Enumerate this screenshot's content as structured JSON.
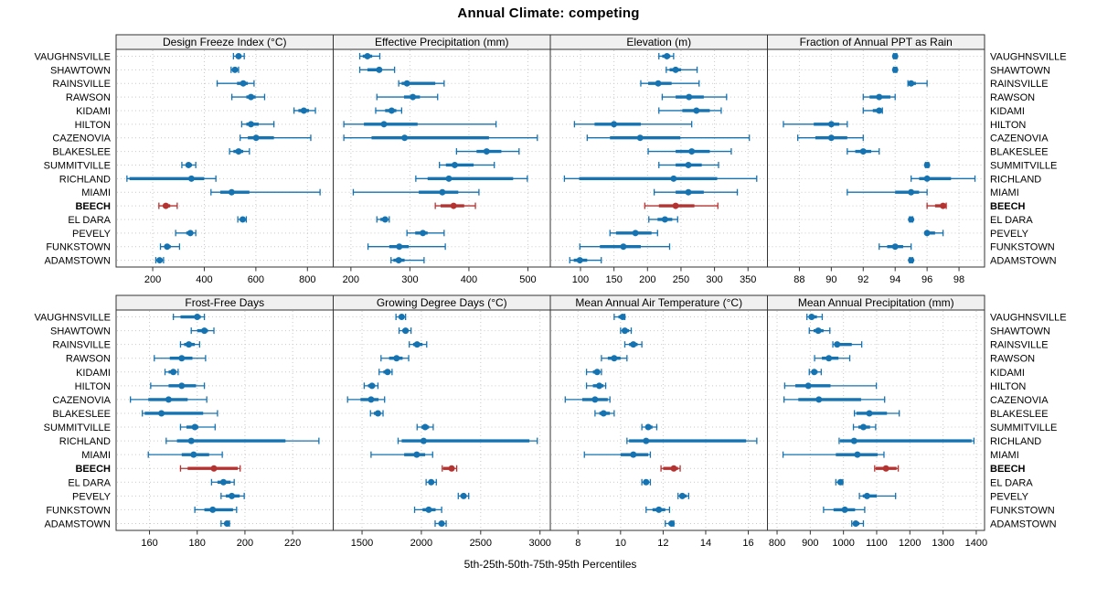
{
  "title": "Annual Climate: competing",
  "caption": "5th-25th-50th-75th-95th Percentiles",
  "stations": [
    "VAUGHNSVILLE",
    "SHAWTOWN",
    "RAINSVILLE",
    "RAWSON",
    "KIDAMI",
    "HILTON",
    "CAZENOVIA",
    "BLAKESLEE",
    "SUMMITVILLE",
    "RICHLAND",
    "MIAMI",
    "BEECH",
    "EL DARA",
    "PEVELY",
    "FUNKSTOWN",
    "ADAMSTOWN"
  ],
  "highlight_station": "BEECH",
  "percentiles": [
    5,
    25,
    50,
    75,
    95
  ],
  "colors": {
    "series": "#1673b1",
    "highlight": "#b43331",
    "grid": "#c9c9c9",
    "strip_bg": "#f0f0f0",
    "border": "#333333",
    "background": "#ffffff"
  },
  "chart_data": [
    {
      "type": "dot-interval",
      "id": "design-freeze-index",
      "title": "Design Freeze Index (°C)",
      "xlim": [
        58,
        900
      ],
      "ticks": [
        200,
        400,
        600,
        800
      ],
      "values": [
        [
          513,
          525,
          533,
          543,
          555
        ],
        [
          504,
          512,
          519,
          527,
          533
        ],
        [
          450,
          527,
          551,
          569,
          593
        ],
        [
          507,
          563,
          581,
          599,
          634
        ],
        [
          748,
          765,
          786,
          806,
          831
        ],
        [
          545,
          563,
          581,
          611,
          670
        ],
        [
          539,
          569,
          601,
          670,
          813
        ],
        [
          498,
          513,
          533,
          551,
          575
        ],
        [
          313,
          328,
          339,
          352,
          367
        ],
        [
          100,
          110,
          350,
          400,
          445
        ],
        [
          426,
          462,
          506,
          575,
          849
        ],
        [
          224,
          240,
          251,
          268,
          295
        ],
        [
          530,
          543,
          549,
          556,
          563
        ],
        [
          289,
          330,
          346,
          356,
          367
        ],
        [
          230,
          245,
          256,
          270,
          304
        ],
        [
          212,
          220,
          227,
          234,
          242
        ]
      ]
    },
    {
      "type": "dot-interval",
      "id": "effective-precipitation",
      "title": "Effective Precipitation (mm)",
      "xlim": [
        170,
        538
      ],
      "ticks": [
        200,
        300,
        400,
        500
      ],
      "values": [
        [
          215,
          220,
          228,
          236,
          249
        ],
        [
          215,
          228,
          248,
          252,
          274
        ],
        [
          281,
          286,
          295,
          343,
          358
        ],
        [
          244,
          290,
          305,
          317,
          347
        ],
        [
          242,
          258,
          269,
          277,
          286
        ],
        [
          188,
          222,
          256,
          313,
          446
        ],
        [
          188,
          235,
          291,
          434,
          516
        ],
        [
          379,
          413,
          430,
          455,
          485
        ],
        [
          350,
          361,
          376,
          408,
          443
        ],
        [
          310,
          330,
          366,
          475,
          499
        ],
        [
          204,
          315,
          355,
          382,
          417
        ],
        [
          343,
          352,
          374,
          392,
          411
        ],
        [
          244,
          250,
          258,
          262,
          265
        ],
        [
          295,
          309,
          322,
          330,
          358
        ],
        [
          229,
          265,
          282,
          298,
          360
        ],
        [
          268,
          272,
          281,
          291,
          324
        ]
      ]
    },
    {
      "type": "dot-interval",
      "id": "elevation",
      "title": "Elevation (m)",
      "xlim": [
        55,
        379
      ],
      "ticks": [
        100,
        150,
        200,
        250,
        300,
        350
      ],
      "values": [
        [
          217,
          222,
          229,
          234,
          239
        ],
        [
          228,
          233,
          242,
          250,
          274
        ],
        [
          190,
          201,
          216,
          236,
          277
        ],
        [
          222,
          242,
          262,
          284,
          318
        ],
        [
          217,
          252,
          273,
          293,
          310
        ],
        [
          91,
          121,
          150,
          190,
          266
        ],
        [
          110,
          144,
          189,
          249,
          352
        ],
        [
          201,
          242,
          266,
          293,
          325
        ],
        [
          217,
          242,
          261,
          281,
          306
        ],
        [
          76,
          98,
          239,
          304,
          363
        ],
        [
          210,
          242,
          261,
          284,
          334
        ],
        [
          196,
          217,
          242,
          270,
          305
        ],
        [
          202,
          215,
          226,
          237,
          245
        ],
        [
          144,
          153,
          182,
          206,
          215
        ],
        [
          99,
          129,
          164,
          190,
          233
        ],
        [
          84,
          90,
          99,
          110,
          131
        ]
      ]
    },
    {
      "type": "dot-interval",
      "id": "fraction-annual-ppt-as-rain",
      "title": "Fraction of Annual PPT as Rain",
      "xlim": [
        86,
        99.6
      ],
      "ticks": [
        88,
        90,
        92,
        94,
        96,
        98
      ],
      "values": [
        [
          93.9,
          94,
          94,
          94,
          94.1
        ],
        [
          93.9,
          94,
          94,
          94,
          94.1
        ],
        [
          94.8,
          94.9,
          95,
          95.3,
          96
        ],
        [
          92,
          92.4,
          93,
          93.7,
          94
        ],
        [
          92,
          92.6,
          93,
          93.1,
          93.2
        ],
        [
          87,
          88.9,
          90,
          90.5,
          91
        ],
        [
          87.9,
          89,
          90,
          91,
          92
        ],
        [
          91,
          91.5,
          92,
          92.5,
          93
        ],
        [
          95.9,
          96,
          96,
          96,
          96.1
        ],
        [
          95,
          95.5,
          96,
          97.5,
          99
        ],
        [
          91,
          94,
          95,
          95.5,
          96
        ],
        [
          96,
          96.5,
          97,
          97.1,
          97.2
        ],
        [
          94.9,
          95,
          95,
          95,
          95.1
        ],
        [
          96,
          96,
          96,
          96.5,
          97
        ],
        [
          93,
          93.5,
          94,
          94.5,
          95
        ],
        [
          94.9,
          95,
          95,
          95,
          95.1
        ]
      ]
    },
    {
      "type": "dot-interval",
      "id": "frost-free-days",
      "title": "Frost-Free Days",
      "xlim": [
        146,
        237
      ],
      "ticks": [
        160,
        180,
        200,
        220
      ],
      "values": [
        [
          170,
          173,
          180,
          181.5,
          183
        ],
        [
          177.5,
          180,
          183,
          184.5,
          187
        ],
        [
          173,
          174.5,
          176.5,
          179,
          181
        ],
        [
          162,
          168.5,
          173.5,
          178,
          183.5
        ],
        [
          166.5,
          168,
          170,
          171,
          172
        ],
        [
          160.5,
          168,
          173.5,
          179.5,
          183
        ],
        [
          152,
          159.5,
          168,
          176,
          184
        ],
        [
          157,
          158,
          165,
          182.5,
          188.5
        ],
        [
          173,
          175.5,
          179,
          180.5,
          187.5
        ],
        [
          167,
          171.5,
          177.5,
          217,
          231
        ],
        [
          159.5,
          173.5,
          178.5,
          185,
          190.5
        ],
        [
          173,
          176,
          187,
          197,
          198
        ],
        [
          186,
          188.5,
          191,
          194,
          195.5
        ],
        [
          190,
          192,
          194.5,
          197.8,
          199.7
        ],
        [
          179,
          183,
          186.5,
          195,
          196.5
        ],
        [
          190,
          191.5,
          192.5,
          193,
          193.5
        ]
      ]
    },
    {
      "type": "dot-interval",
      "id": "growing-degree-days",
      "title": "Growing Degree Days (°C)",
      "xlim": [
        1257,
        3087
      ],
      "ticks": [
        1500,
        2000,
        2500,
        3000
      ],
      "values": [
        [
          1786,
          1810,
          1834,
          1850,
          1867
        ],
        [
          1812,
          1840,
          1867,
          1890,
          1913
        ],
        [
          1898,
          1930,
          1964,
          2010,
          2045
        ],
        [
          1660,
          1728,
          1791,
          1842,
          1893
        ],
        [
          1644,
          1680,
          1715,
          1735,
          1753
        ],
        [
          1518,
          1550,
          1584,
          1610,
          1634
        ],
        [
          1378,
          1487,
          1576,
          1639,
          1690
        ],
        [
          1571,
          1600,
          1634,
          1655,
          1677
        ],
        [
          1964,
          2000,
          2032,
          2065,
          2100
        ],
        [
          1804,
          1834,
          2019,
          2911,
          2977
        ],
        [
          1576,
          1855,
          1961,
          2032,
          2095
        ],
        [
          2176,
          2184,
          2255,
          2278,
          2298
        ],
        [
          2040,
          2062,
          2083,
          2105,
          2126
        ],
        [
          2311,
          2330,
          2356,
          2380,
          2399
        ],
        [
          1943,
          2010,
          2062,
          2120,
          2171
        ],
        [
          2116,
          2145,
          2171,
          2190,
          2209
        ]
      ]
    },
    {
      "type": "dot-interval",
      "id": "mean-annual-air-temperature",
      "title": "Mean Annual Air Temperature (°C)",
      "xlim": [
        6.7,
        16.9
      ],
      "ticks": [
        8,
        10,
        12,
        14,
        16
      ],
      "values": [
        [
          9.7,
          9.9,
          10.1,
          10.15,
          10.2
        ],
        [
          10,
          10.1,
          10.2,
          10.4,
          10.5
        ],
        [
          10.2,
          10.4,
          10.6,
          10.8,
          11
        ],
        [
          9.1,
          9.4,
          9.7,
          10,
          10.3
        ],
        [
          8.4,
          8.7,
          8.9,
          9,
          9.1
        ],
        [
          8.4,
          8.7,
          9,
          9.2,
          9.3
        ],
        [
          7.4,
          8.2,
          8.8,
          9.4,
          9.5
        ],
        [
          8.8,
          9,
          9.2,
          9.5,
          9.7
        ],
        [
          11,
          11.2,
          11.3,
          11.5,
          11.7
        ],
        [
          10.3,
          10.4,
          11.2,
          15.9,
          16.4
        ],
        [
          8.3,
          10,
          10.6,
          11.3,
          11.4
        ],
        [
          11.9,
          12,
          12.5,
          12.7,
          12.8
        ],
        [
          11,
          11.1,
          11.2,
          11.3,
          11.4
        ],
        [
          12.7,
          12.8,
          12.9,
          13.1,
          13.2
        ],
        [
          11.2,
          11.5,
          11.8,
          12.1,
          12.3
        ],
        [
          12.1,
          12.25,
          12.4,
          12.45,
          12.5
        ]
      ]
    },
    {
      "type": "dot-interval",
      "id": "mean-annual-precipitation",
      "title": "Mean Annual Precipitation (mm)",
      "xlim": [
        771,
        1425
      ],
      "ticks": [
        800,
        900,
        1000,
        1100,
        1200,
        1300,
        1400
      ],
      "values": [
        [
          890,
          897,
          904,
          920,
          936
        ],
        [
          897,
          910,
          924,
          940,
          959
        ],
        [
          968,
          975,
          981,
          1025,
          1055
        ],
        [
          913,
          935,
          956,
          985,
          1019
        ],
        [
          897,
          905,
          912,
          922,
          933
        ],
        [
          823,
          855,
          894,
          961,
          1099
        ],
        [
          821,
          864,
          926,
          1053,
          1124
        ],
        [
          1033,
          1039,
          1078,
          1131,
          1168
        ],
        [
          1030,
          1045,
          1060,
          1080,
          1097
        ],
        [
          987,
          990,
          1032,
          1386,
          1393
        ],
        [
          818,
          977,
          1042,
          1103,
          1122
        ],
        [
          1094,
          1097,
          1128,
          1160,
          1165
        ],
        [
          977,
          983,
          991,
          995,
          998
        ],
        [
          1048,
          1058,
          1071,
          1100,
          1157
        ],
        [
          940,
          970,
          1004,
          1035,
          1064
        ],
        [
          1025,
          1032,
          1037,
          1048,
          1060
        ]
      ]
    }
  ]
}
